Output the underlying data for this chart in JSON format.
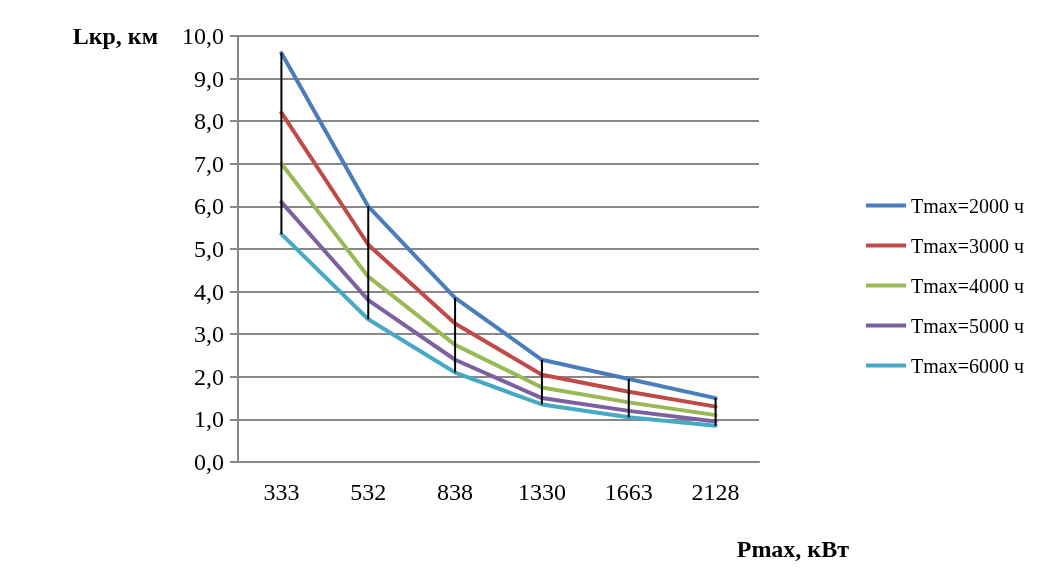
{
  "chart_data": {
    "type": "line",
    "ylabel": "Lкр, км",
    "xlabel": "Pmax, кВт",
    "categories": [
      "333",
      "532",
      "838",
      "1330",
      "1663",
      "2128"
    ],
    "ylim": [
      0,
      10
    ],
    "yticks": [
      {
        "value": 0,
        "label": "0,0"
      },
      {
        "value": 1,
        "label": "1,0"
      },
      {
        "value": 2,
        "label": "2,0"
      },
      {
        "value": 3,
        "label": "3,0"
      },
      {
        "value": 4,
        "label": "4,0"
      },
      {
        "value": 5,
        "label": "5,0"
      },
      {
        "value": 6,
        "label": "6,0"
      },
      {
        "value": 7,
        "label": "7,0"
      },
      {
        "value": 8,
        "label": "8,0"
      },
      {
        "value": 9,
        "label": "9,0"
      },
      {
        "value": 10,
        "label": "10,0"
      }
    ],
    "grid": "y",
    "legend": "right",
    "marker": "none",
    "line_style": "solid",
    "series": [
      {
        "name": "Tmax=2000 ч",
        "color": "#4a7ebb",
        "values": [
          9.6,
          6.0,
          3.85,
          2.4,
          1.95,
          1.5
        ]
      },
      {
        "name": "Tmax=3000 ч",
        "color": "#be4b48",
        "values": [
          8.2,
          5.1,
          3.25,
          2.05,
          1.65,
          1.3
        ]
      },
      {
        "name": "Tmax=4000 ч",
        "color": "#98b954",
        "values": [
          7.0,
          4.35,
          2.75,
          1.75,
          1.4,
          1.1
        ]
      },
      {
        "name": "Tmax=5000 ч",
        "color": "#7d60a0",
        "values": [
          6.1,
          3.8,
          2.4,
          1.5,
          1.2,
          0.95
        ]
      },
      {
        "name": "Tmax=6000 ч",
        "color": "#46aac5",
        "values": [
          5.35,
          3.35,
          2.1,
          1.35,
          1.05,
          0.85
        ],
        "errors": [
          [
            5.35,
            9.6
          ],
          [
            3.35,
            6.0
          ],
          [
            2.1,
            3.85
          ],
          [
            1.35,
            2.4
          ],
          [
            1.05,
            1.95
          ],
          [
            0.85,
            1.5
          ]
        ]
      }
    ]
  }
}
